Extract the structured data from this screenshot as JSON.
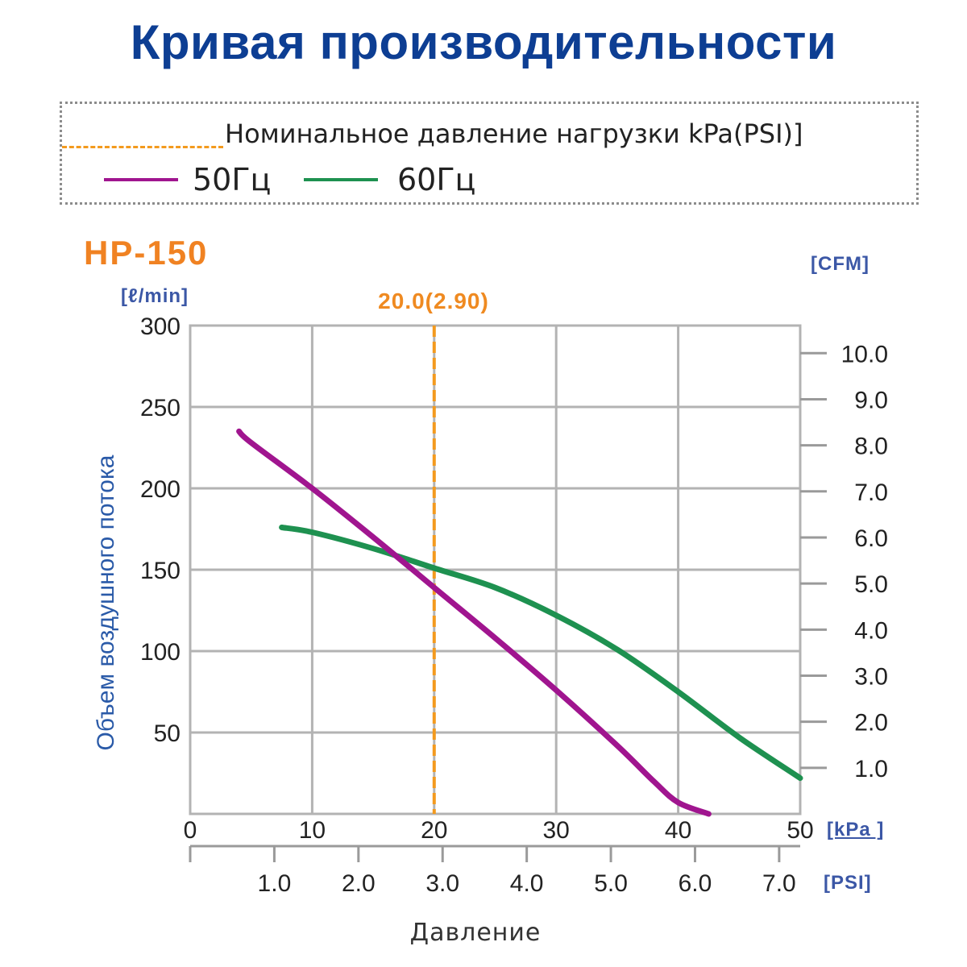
{
  "title": "Кривая производительности",
  "legend": {
    "nominal_label": "Номинальное давление нагрузки kPa(PSI)]",
    "series_50_label": "50Гц",
    "series_60_label": "60Гц"
  },
  "model": "HP-150",
  "units": {
    "left": "[ℓ/min]",
    "right": "[CFM]",
    "bottom_primary": "[kPa ]",
    "bottom_secondary": "[PSI]"
  },
  "colors": {
    "series_50": "#a0158f",
    "series_60": "#1e9150",
    "nominal": "#f39a1e",
    "title": "#0d3e93",
    "model": "#f08222"
  },
  "chart_data": {
    "type": "line",
    "xlabel": "Давление",
    "ylabel": "Объем воздушного потока",
    "xlim": [
      0,
      50
    ],
    "ylim": [
      0,
      300
    ],
    "x_ticks": [
      0,
      10,
      20,
      30,
      40,
      50
    ],
    "y_ticks": [
      50,
      100,
      150,
      200,
      250,
      300
    ],
    "grid": true,
    "secondary_y": {
      "unit": "[CFM]",
      "range": [
        0,
        10.6
      ],
      "ticks": [
        1.0,
        2.0,
        3.0,
        4.0,
        5.0,
        6.0,
        7.0,
        8.0,
        9.0,
        10.0
      ]
    },
    "secondary_x": {
      "unit": "[PSI]",
      "range": [
        0,
        7.25
      ],
      "ticks": [
        1.0,
        2.0,
        3.0,
        4.0,
        5.0,
        6.0,
        7.0
      ]
    },
    "nominal_line": {
      "x": 20,
      "label": "20.0(2.90)"
    },
    "series": [
      {
        "name": "50Гц",
        "points": [
          [
            4,
            235
          ],
          [
            5,
            228
          ],
          [
            10,
            200
          ],
          [
            15,
            170
          ],
          [
            20,
            139
          ],
          [
            25,
            108
          ],
          [
            30,
            76
          ],
          [
            35,
            42
          ],
          [
            38,
            20
          ],
          [
            40,
            7
          ],
          [
            42.5,
            0
          ]
        ]
      },
      {
        "name": "60Гц",
        "points": [
          [
            7.5,
            176
          ],
          [
            10,
            173
          ],
          [
            15,
            163
          ],
          [
            20,
            151
          ],
          [
            25,
            139
          ],
          [
            30,
            122
          ],
          [
            35,
            101
          ],
          [
            40,
            75
          ],
          [
            45,
            47
          ],
          [
            50,
            22
          ]
        ]
      }
    ]
  }
}
